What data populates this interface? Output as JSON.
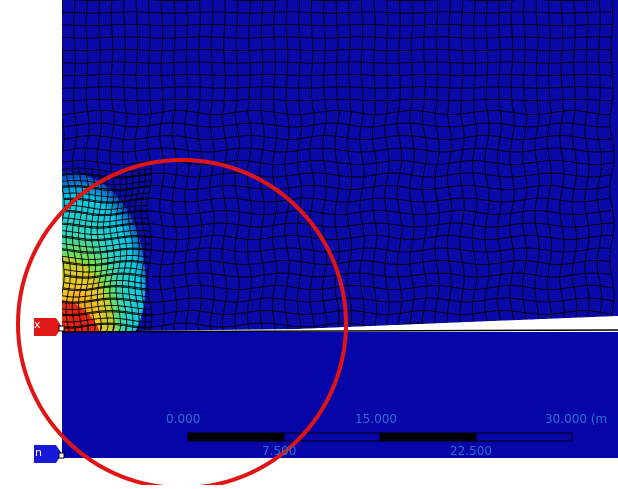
{
  "colors": {
    "mesh_fill": "#0a0aa8",
    "mesh_lines": "#000000",
    "lower_body": "#0505a8",
    "highlight_circle": "#e01414",
    "max_marker": "#e01818",
    "min_marker": "#1818d8",
    "scale_text": "#2b6fd0",
    "stress_gradient": [
      "#00e0ff",
      "#2ad4c0",
      "#7fe040",
      "#f0d020",
      "#ff8010",
      "#e01010"
    ]
  },
  "markers": {
    "max": {
      "label": "x",
      "icon": "max-flag-icon"
    },
    "min": {
      "label": "n",
      "icon": "min-flag-icon"
    }
  },
  "scale_bar": {
    "top_labels": [
      "0.000",
      "15.000",
      "30.000 (m"
    ],
    "bottom_labels": [
      "7.500",
      "22.500"
    ]
  }
}
